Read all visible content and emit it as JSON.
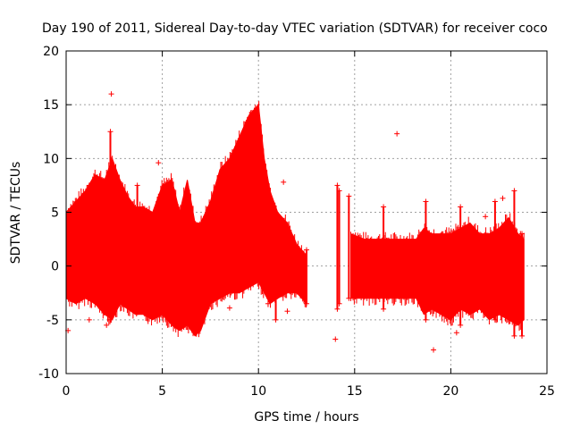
{
  "chart_data": {
    "type": "scatter",
    "title": "Day 190 of 2011, Sidereal Day-to-day VTEC variation (SDTVAR) for receiver coco",
    "xlabel": "GPS time / hours",
    "ylabel": "SDTVAR / TECUs",
    "xlim": [
      0,
      25
    ],
    "ylim": [
      -10,
      20
    ],
    "xticks": [
      0,
      5,
      10,
      15,
      20,
      25
    ],
    "yticks": [
      -10,
      -5,
      0,
      5,
      10,
      15,
      20
    ],
    "grid": true,
    "legend": "none",
    "series_color": "#ff0000",
    "envelope": {
      "x": [
        0.0,
        0.5,
        1.0,
        1.5,
        2.0,
        2.4,
        2.8,
        3.2,
        3.6,
        4.0,
        4.5,
        5.0,
        5.5,
        5.9,
        6.3,
        6.7,
        7.0,
        7.5,
        8.0,
        8.5,
        9.0,
        9.5,
        10.0,
        10.3,
        10.6,
        11.0,
        11.5,
        12.0,
        12.5
      ],
      "upper": [
        5.0,
        6.0,
        7.0,
        8.5,
        8.0,
        10.0,
        8.0,
        6.5,
        5.5,
        5.5,
        5.0,
        7.5,
        8.0,
        5.0,
        8.0,
        4.0,
        4.0,
        6.0,
        9.0,
        10.0,
        12.0,
        14.0,
        15.0,
        10.0,
        7.0,
        5.0,
        4.0,
        2.0,
        1.0
      ],
      "lower": [
        -3.0,
        -3.5,
        -3.0,
        -3.5,
        -4.5,
        -5.0,
        -3.5,
        -4.0,
        -4.5,
        -4.5,
        -5.0,
        -4.5,
        -5.5,
        -6.0,
        -5.5,
        -6.5,
        -6.0,
        -3.5,
        -3.0,
        -2.5,
        -2.5,
        -2.0,
        -1.5,
        -2.5,
        -3.5,
        -3.0,
        -2.5,
        -2.5,
        -3.5
      ]
    },
    "envelope2": {
      "x": [
        14.8,
        15.5,
        16.5,
        17.5,
        18.2,
        18.6,
        19.0,
        19.5,
        20.0,
        20.5,
        21.0,
        21.5,
        22.0,
        22.5,
        23.0,
        23.5,
        23.8
      ],
      "upper": [
        3.0,
        2.5,
        2.5,
        2.5,
        2.5,
        3.5,
        3.0,
        3.0,
        3.0,
        3.5,
        4.0,
        3.0,
        3.0,
        3.5,
        4.5,
        3.0,
        2.5
      ],
      "lower": [
        -3.0,
        -3.0,
        -3.0,
        -3.0,
        -3.0,
        -4.5,
        -4.0,
        -4.5,
        -5.0,
        -4.0,
        -4.5,
        -4.0,
        -5.0,
        -4.5,
        -5.0,
        -5.5,
        -5.0
      ]
    },
    "spikes": [
      {
        "x": 1.2,
        "low": -3.0,
        "high": 7.5
      },
      {
        "x": 2.3,
        "low": -5.0,
        "high": 12.5
      },
      {
        "x": 3.7,
        "low": -4.0,
        "high": 7.5
      },
      {
        "x": 10.9,
        "low": -5.0,
        "high": 5.0
      },
      {
        "x": 12.5,
        "low": -3.5,
        "high": 1.5
      },
      {
        "x": 14.1,
        "low": -4.0,
        "high": 7.5
      },
      {
        "x": 14.2,
        "low": -3.5,
        "high": 7.0
      },
      {
        "x": 14.7,
        "low": -3.0,
        "high": 6.5
      },
      {
        "x": 16.5,
        "low": -4.0,
        "high": 5.5
      },
      {
        "x": 18.7,
        "low": -5.0,
        "high": 6.0
      },
      {
        "x": 20.5,
        "low": -5.5,
        "high": 5.5
      },
      {
        "x": 22.3,
        "low": -5.0,
        "high": 6.0
      },
      {
        "x": 23.3,
        "low": -6.5,
        "high": 7.0
      },
      {
        "x": 23.7,
        "low": -6.5,
        "high": 3.0
      }
    ],
    "outliers": [
      {
        "x": 2.35,
        "y": 16.0
      },
      {
        "x": 4.8,
        "y": 9.6
      },
      {
        "x": 17.2,
        "y": 12.3
      },
      {
        "x": 11.3,
        "y": 7.8
      },
      {
        "x": 14.0,
        "y": -6.8
      },
      {
        "x": 19.1,
        "y": -7.8
      },
      {
        "x": 20.3,
        "y": -6.2
      },
      {
        "x": 0.1,
        "y": -6.0
      },
      {
        "x": 1.2,
        "y": -5.0
      },
      {
        "x": 2.1,
        "y": -5.5
      },
      {
        "x": 8.5,
        "y": -3.9
      },
      {
        "x": 11.5,
        "y": -4.2
      },
      {
        "x": 21.8,
        "y": 4.6
      },
      {
        "x": 22.7,
        "y": 6.3
      },
      {
        "x": 10.5,
        "y": -3.5
      },
      {
        "x": 9.0,
        "y": 8.0
      }
    ]
  }
}
